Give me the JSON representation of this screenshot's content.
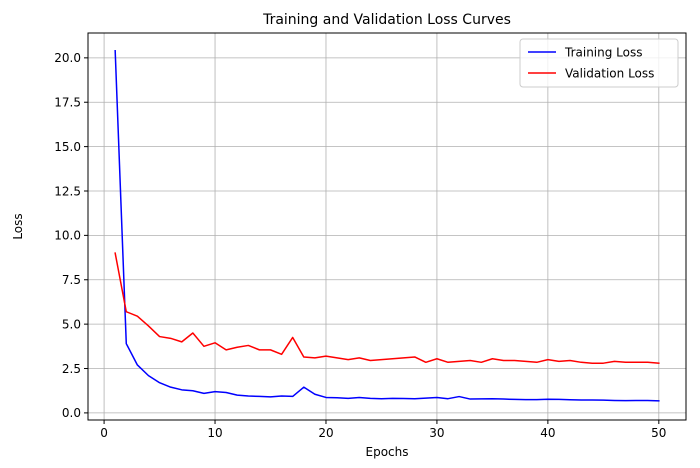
{
  "chart_data": {
    "type": "line",
    "title": "Training and Validation Loss Curves",
    "xlabel": "Epochs",
    "ylabel": "Loss",
    "xlim": [
      -1.45,
      52.45
    ],
    "ylim": [
      -0.4,
      21.4
    ],
    "xticks": [
      0,
      10,
      20,
      30,
      40,
      50
    ],
    "yticks": [
      0.0,
      2.5,
      5.0,
      7.5,
      10.0,
      12.5,
      15.0,
      17.5,
      20.0
    ],
    "xtick_labels": [
      "0",
      "10",
      "20",
      "30",
      "40",
      "50"
    ],
    "ytick_labels": [
      "0.0",
      "2.5",
      "5.0",
      "7.5",
      "10.0",
      "12.5",
      "15.0",
      "17.5",
      "20.0"
    ],
    "grid": true,
    "legend_position": "top-right",
    "x": [
      1,
      2,
      3,
      4,
      5,
      6,
      7,
      8,
      9,
      10,
      11,
      12,
      13,
      14,
      15,
      16,
      17,
      18,
      19,
      20,
      21,
      22,
      23,
      24,
      25,
      26,
      27,
      28,
      29,
      30,
      31,
      32,
      33,
      34,
      35,
      36,
      37,
      38,
      39,
      40,
      41,
      42,
      43,
      44,
      45,
      46,
      47,
      48,
      49,
      50
    ],
    "series": [
      {
        "name": "Training Loss",
        "color": "#0000ff",
        "values": [
          20.4,
          3.9,
          2.7,
          2.1,
          1.7,
          1.45,
          1.3,
          1.25,
          1.1,
          1.2,
          1.15,
          1.0,
          0.95,
          0.93,
          0.9,
          0.95,
          0.93,
          1.45,
          1.05,
          0.87,
          0.85,
          0.82,
          0.87,
          0.82,
          0.8,
          0.82,
          0.81,
          0.8,
          0.83,
          0.87,
          0.8,
          0.92,
          0.78,
          0.79,
          0.8,
          0.78,
          0.76,
          0.75,
          0.75,
          0.77,
          0.76,
          0.74,
          0.73,
          0.73,
          0.72,
          0.7,
          0.69,
          0.7,
          0.7,
          0.68
        ]
      },
      {
        "name": "Validation Loss",
        "color": "#ff0000",
        "values": [
          9.0,
          5.7,
          5.45,
          4.9,
          4.3,
          4.2,
          4.0,
          4.5,
          3.75,
          3.95,
          3.55,
          3.7,
          3.8,
          3.55,
          3.55,
          3.3,
          4.25,
          3.15,
          3.1,
          3.2,
          3.1,
          3.0,
          3.1,
          2.95,
          3.0,
          3.05,
          3.1,
          3.15,
          2.85,
          3.05,
          2.85,
          2.9,
          2.95,
          2.85,
          3.05,
          2.95,
          2.95,
          2.9,
          2.85,
          3.0,
          2.9,
          2.95,
          2.85,
          2.8,
          2.8,
          2.9,
          2.85,
          2.85,
          2.85,
          2.8
        ]
      }
    ]
  }
}
